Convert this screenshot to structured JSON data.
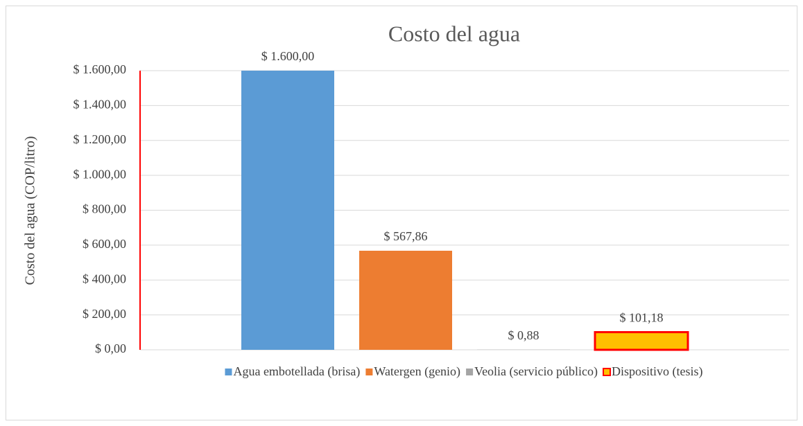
{
  "chart_data": {
    "type": "bar",
    "title": "Costo del agua",
    "y_label": "Costo del agua (COP/litro)",
    "categories": [
      null
    ],
    "series": [
      {
        "name": "Agua embotellada (brisa)",
        "color": "#5b9bd5",
        "values": [
          1600
        ],
        "value_labels": [
          "$ 1.600,00"
        ]
      },
      {
        "name": "Watergen (genio)",
        "color": "#ed7d31",
        "values": [
          567.86
        ],
        "value_labels": [
          "$ 567,86"
        ]
      },
      {
        "name": "Veolia (servicio público)",
        "color": "#a5a5a5",
        "values": [
          0.88
        ],
        "value_labels": [
          "$ 0,88"
        ]
      },
      {
        "name": "Dispositivo (tesis)",
        "color": "#ffc000",
        "edgecolor": "#ff0000",
        "values": [
          101.18
        ],
        "value_labels": [
          "$ 101,18"
        ]
      }
    ],
    "ylim": [
      0,
      1600
    ],
    "yticks": [
      {
        "value": 0,
        "label": "$ 0,00"
      },
      {
        "value": 200,
        "label": "$ 200,00"
      },
      {
        "value": 400,
        "label": "$ 400,00"
      },
      {
        "value": 600,
        "label": "$ 600,00"
      },
      {
        "value": 800,
        "label": "$ 800,00"
      },
      {
        "value": 1000,
        "label": "$ 1.000,00"
      },
      {
        "value": 1200,
        "label": "$ 1.200,00"
      },
      {
        "value": 1400,
        "label": "$ 1.400,00"
      },
      {
        "value": 1600,
        "label": "$ 1.600,00"
      }
    ],
    "grid": true,
    "legend": "bottom",
    "axis_color": "#ff0000"
  }
}
